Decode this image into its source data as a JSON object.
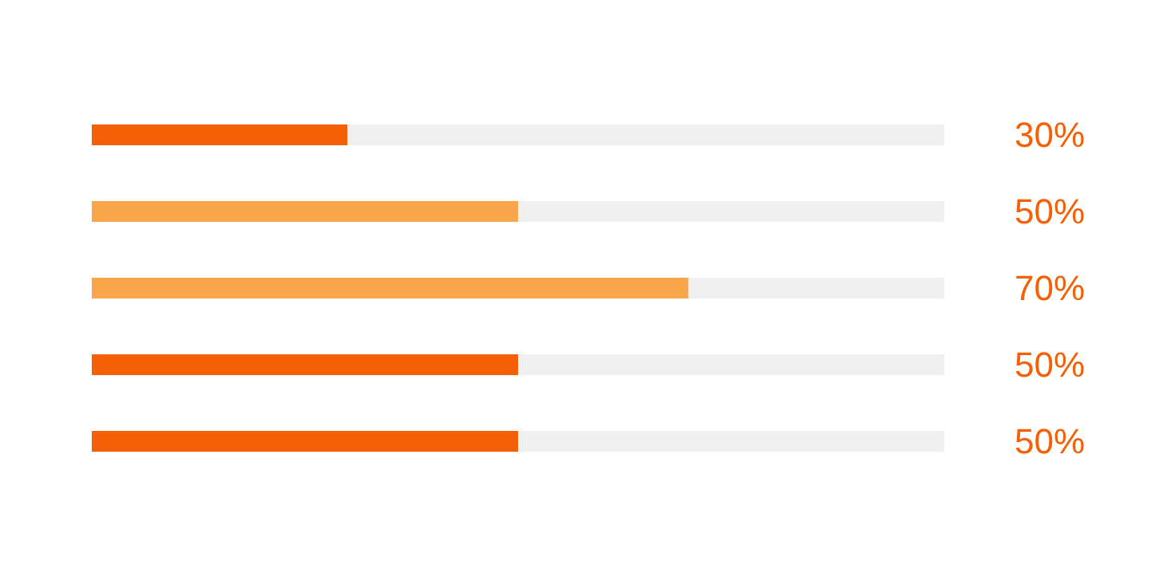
{
  "chart_data": {
    "type": "bar",
    "orientation": "horizontal",
    "stacked": true,
    "categories": [
      null,
      null,
      null,
      null,
      null
    ],
    "series": [
      {
        "colors": [
          "#f56006",
          "#f9a64a",
          "#f9a64a",
          "#f56006",
          "#f56006"
        ],
        "values": [
          30,
          50,
          70,
          50,
          50
        ],
        "value_labels": [
          "30%",
          "50%",
          "70%",
          "50%",
          "50%"
        ]
      },
      {
        "color": "#f0f0f0",
        "values": [
          70,
          50,
          30,
          50,
          50
        ]
      }
    ]
  }
}
